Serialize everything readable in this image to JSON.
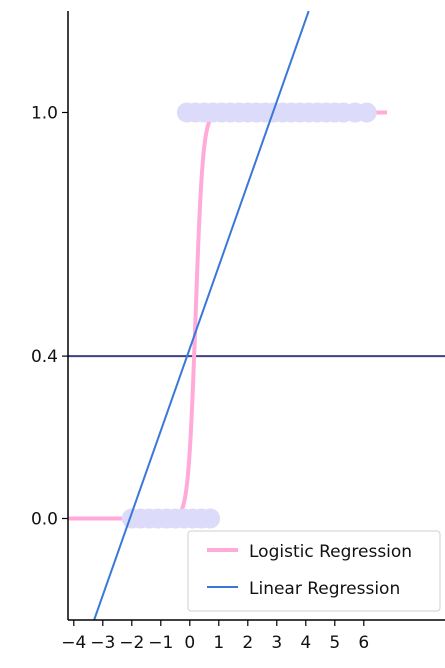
{
  "chart_data": {
    "type": "line",
    "title": "",
    "xlabel": "",
    "ylabel": "",
    "xlim": [
      -4.2,
      8.8
    ],
    "ylim": [
      -0.25,
      1.25
    ],
    "x_ticks": [
      -4,
      -3,
      -2,
      -1,
      0,
      1,
      2,
      3,
      4,
      5,
      6
    ],
    "y_ticks": [
      0.0,
      0.4,
      1.0
    ],
    "y_tick_labels": [
      "0.0",
      "0.4",
      "1.0"
    ],
    "grid": false,
    "legend": {
      "placement": "lower-right",
      "entries": [
        "Logistic Regression",
        "Linear Regression"
      ]
    },
    "series": [
      {
        "name": "Logistic Regression",
        "kind": "sigmoid",
        "midpoint": 0.2,
        "steepness": 8,
        "x_range": [
          -4.2,
          6.8
        ],
        "color": "#ffaad8"
      },
      {
        "name": "Linear Regression",
        "kind": "line",
        "points": [
          [
            -3.3,
            -0.25
          ],
          [
            4.1,
            1.25
          ]
        ],
        "color": "#3a78d8"
      }
    ],
    "threshold": {
      "y": 0.4,
      "color": "#3d3f87"
    },
    "points_class_0": {
      "y": 0,
      "x": [
        -2.0,
        -1.7,
        -1.4,
        -1.1,
        -0.8,
        -0.5,
        -0.2,
        0.1,
        0.4,
        0.7
      ],
      "color": "#dcdcfa"
    },
    "points_class_1": {
      "y": 1,
      "x": [
        -0.1,
        0.2,
        0.5,
        0.8,
        1.1,
        1.4,
        1.7,
        2.0,
        2.3,
        2.6,
        2.9,
        3.2,
        3.5,
        3.8,
        4.1,
        4.4,
        4.7,
        5.0,
        5.3,
        5.7,
        6.1
      ],
      "color": "#dcdcfa"
    }
  }
}
